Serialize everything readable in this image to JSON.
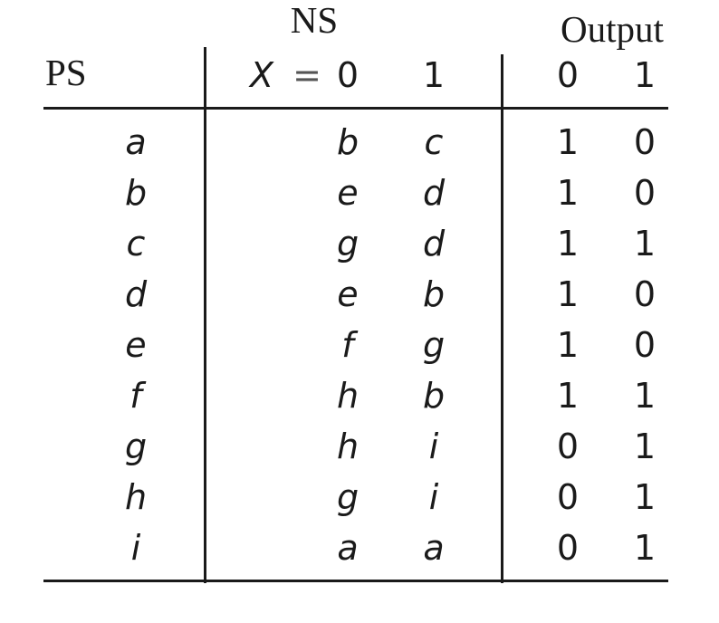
{
  "header": {
    "ns_label": "NS",
    "output_label": "Output",
    "ps_label": "PS",
    "x_var": "X",
    "x_eq": "=",
    "ns_cols": [
      "0",
      "1"
    ],
    "out_cols": [
      "0",
      "1"
    ]
  },
  "rows": [
    {
      "ps": "a",
      "ns0": "b",
      "ns1": "c",
      "z0": "1",
      "z1": "0"
    },
    {
      "ps": "b",
      "ns0": "e",
      "ns1": "d",
      "z0": "1",
      "z1": "0"
    },
    {
      "ps": "c",
      "ns0": "g",
      "ns1": "d",
      "z0": "1",
      "z1": "1"
    },
    {
      "ps": "d",
      "ns0": "e",
      "ns1": "b",
      "z0": "1",
      "z1": "0"
    },
    {
      "ps": "e",
      "ns0": "f",
      "ns1": "g",
      "z0": "1",
      "z1": "0"
    },
    {
      "ps": "f",
      "ns0": "h",
      "ns1": "b",
      "z0": "1",
      "z1": "1"
    },
    {
      "ps": "g",
      "ns0": "h",
      "ns1": "i",
      "z0": "0",
      "z1": "1"
    },
    {
      "ps": "h",
      "ns0": "g",
      "ns1": "i",
      "z0": "0",
      "z1": "1"
    },
    {
      "ps": "i",
      "ns0": "a",
      "ns1": "a",
      "z0": "0",
      "z1": "1"
    }
  ]
}
